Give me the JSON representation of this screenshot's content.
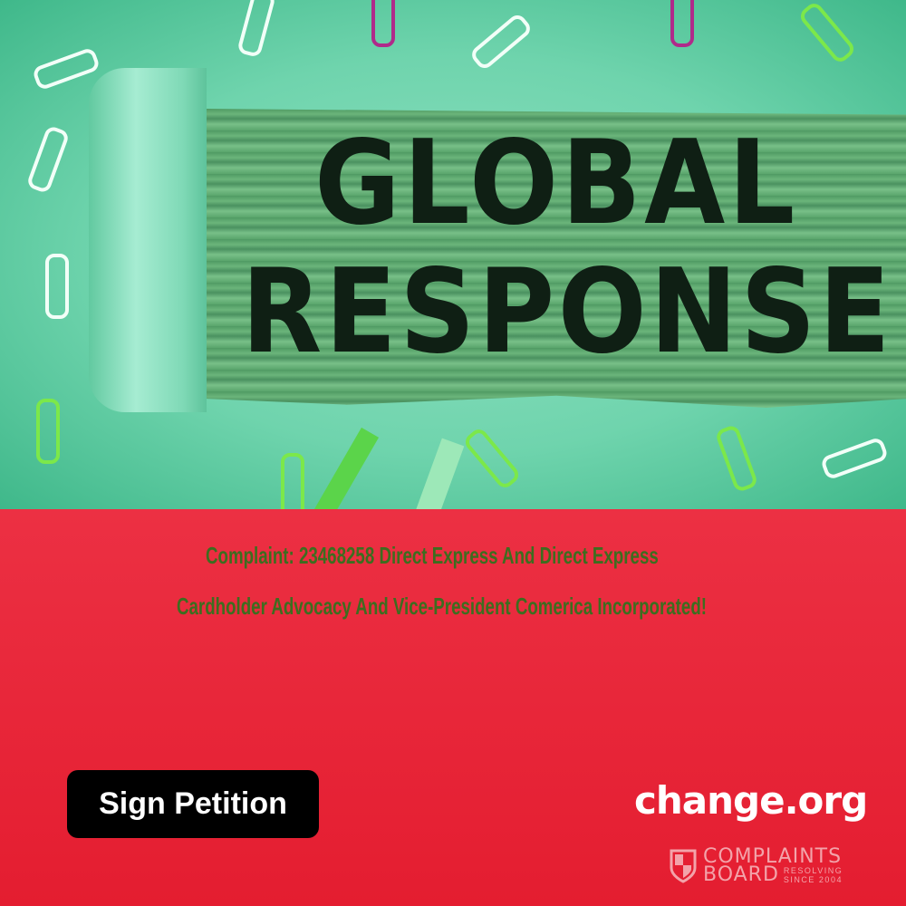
{
  "hero": {
    "line1": "GLOBAL",
    "line2": "RESPONSE"
  },
  "complaint": {
    "line1": "Complaint: 23468258 Direct Express And Direct Express",
    "line2": "Cardholder Advocacy And Vice-President Comerica Incorporated!"
  },
  "sign_button": "Sign Petition",
  "brand": "change.org",
  "watermark": {
    "word1": "COMPLAINTS",
    "word2": "BOARD",
    "tag1": "RESOLVING",
    "tag2": "SINCE 2004"
  },
  "colors": {
    "red": "#e8283a",
    "text_green": "#3d6d1f",
    "teal": "#6fd4ad"
  }
}
